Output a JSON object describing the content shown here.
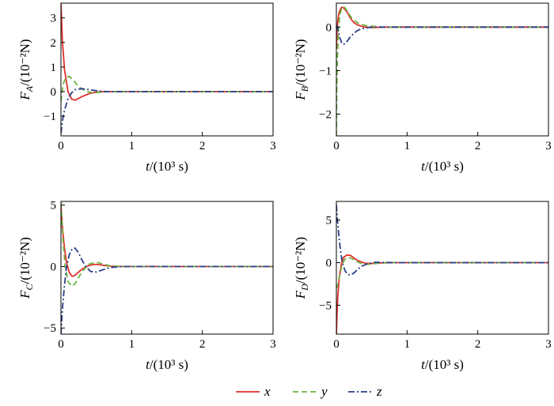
{
  "chart_data": [
    {
      "type": "line",
      "panel": "A",
      "ylabel": {
        "base": "F",
        "sub": "A",
        "unit": "/(10⁻²N)"
      },
      "xlabel": {
        "base": "t",
        "unit": "/(10³ s)"
      },
      "xlim": [
        0,
        3
      ],
      "ylim": [
        -1.8,
        3.6
      ],
      "xticks": [
        0,
        1,
        2,
        3
      ],
      "yticks": [
        -1,
        0,
        1,
        2,
        3
      ],
      "series": [
        {
          "name": "x",
          "x": [
            0,
            0.02,
            0.05,
            0.1,
            0.15,
            0.2,
            0.3,
            0.4,
            0.5,
            0.6,
            0.7,
            0.8,
            1.0,
            3.0
          ],
          "y": [
            3.6,
            2.1,
            0.9,
            0.0,
            -0.3,
            -0.35,
            -0.2,
            -0.08,
            -0.02,
            0.0,
            0.0,
            0.0,
            0.0,
            0.0
          ]
        },
        {
          "name": "y",
          "x": [
            0,
            0.03,
            0.07,
            0.12,
            0.18,
            0.25,
            0.35,
            0.45,
            0.55,
            0.65,
            0.8,
            1.0,
            3.0
          ],
          "y": [
            -0.4,
            0.3,
            0.58,
            0.62,
            0.45,
            0.2,
            0.02,
            -0.05,
            -0.03,
            0.0,
            0.0,
            0.0,
            0.0
          ]
        },
        {
          "name": "z",
          "x": [
            0,
            0.02,
            0.05,
            0.1,
            0.15,
            0.2,
            0.3,
            0.4,
            0.5,
            0.6,
            0.7,
            0.85,
            1.0,
            3.0
          ],
          "y": [
            -1.7,
            -1.2,
            -0.75,
            -0.3,
            -0.05,
            0.08,
            0.12,
            0.08,
            0.04,
            0.01,
            0.0,
            0.0,
            0.0,
            0.0
          ]
        }
      ]
    },
    {
      "type": "line",
      "panel": "B",
      "ylabel": {
        "base": "F",
        "sub": "B",
        "unit": "/(10⁻²N)"
      },
      "xlabel": {
        "base": "t",
        "unit": "/(10³ s)"
      },
      "xlim": [
        0,
        3
      ],
      "ylim": [
        -2.5,
        0.55
      ],
      "xticks": [
        0,
        1,
        2,
        3
      ],
      "yticks": [
        -2,
        -1,
        0
      ],
      "series": [
        {
          "name": "x",
          "x": [
            0,
            0.01,
            0.02,
            0.04,
            0.07,
            0.1,
            0.15,
            0.2,
            0.25,
            0.3,
            0.4,
            0.5,
            0.7,
            1.0,
            3.0
          ],
          "y": [
            -0.5,
            -0.1,
            0.15,
            0.35,
            0.45,
            0.45,
            0.35,
            0.2,
            0.1,
            0.05,
            0.0,
            -0.01,
            0.0,
            0.0,
            0.0
          ]
        },
        {
          "name": "y",
          "x": [
            0,
            0.005,
            0.015,
            0.03,
            0.05,
            0.08,
            0.12,
            0.17,
            0.22,
            0.3,
            0.4,
            0.5,
            0.65,
            0.8,
            1.0,
            3.0
          ],
          "y": [
            -2.5,
            -1.6,
            -0.7,
            -0.05,
            0.3,
            0.45,
            0.45,
            0.32,
            0.2,
            0.1,
            0.04,
            0.02,
            0.0,
            0.0,
            0.0,
            0.0
          ]
        },
        {
          "name": "z",
          "x": [
            0,
            0.02,
            0.05,
            0.08,
            0.1,
            0.12,
            0.15,
            0.2,
            0.25,
            0.3,
            0.35,
            0.45,
            0.55,
            0.7,
            1.0,
            3.0
          ],
          "y": [
            0.05,
            -0.05,
            -0.25,
            -0.38,
            -0.4,
            -0.38,
            -0.33,
            -0.22,
            -0.14,
            -0.08,
            -0.04,
            -0.01,
            0.0,
            0.0,
            0.0,
            0.0
          ]
        }
      ]
    },
    {
      "type": "line",
      "panel": "C",
      "ylabel": {
        "base": "F",
        "sub": "C",
        "unit": "/(10⁻²N)"
      },
      "xlabel": {
        "base": "t",
        "unit": "/(10³ s)"
      },
      "xlim": [
        0,
        3
      ],
      "ylim": [
        -5.5,
        5.3
      ],
      "xticks": [
        0,
        1,
        2,
        3
      ],
      "yticks": [
        -5,
        0,
        5
      ],
      "series": [
        {
          "name": "x",
          "x": [
            0,
            0.02,
            0.05,
            0.08,
            0.12,
            0.16,
            0.2,
            0.25,
            0.3,
            0.4,
            0.5,
            0.6,
            0.7,
            0.85,
            1.0,
            3.0
          ],
          "y": [
            5.0,
            3.2,
            1.5,
            0.3,
            -0.5,
            -0.8,
            -0.7,
            -0.45,
            -0.2,
            0.1,
            0.18,
            0.1,
            0.03,
            0.0,
            0.0,
            0.0
          ]
        },
        {
          "name": "y",
          "x": [
            0,
            0.03,
            0.06,
            0.1,
            0.15,
            0.2,
            0.25,
            0.3,
            0.4,
            0.5,
            0.6,
            0.7,
            0.85,
            1.0,
            3.0
          ],
          "y": [
            5.2,
            2.0,
            0.0,
            -1.2,
            -1.6,
            -1.4,
            -0.9,
            -0.4,
            0.2,
            0.35,
            0.2,
            0.05,
            0.0,
            0.0,
            0.0
          ]
        },
        {
          "name": "z",
          "x": [
            0,
            0.02,
            0.05,
            0.08,
            0.12,
            0.16,
            0.2,
            0.25,
            0.3,
            0.35,
            0.42,
            0.5,
            0.6,
            0.7,
            0.85,
            1.0,
            3.0
          ],
          "y": [
            -5.5,
            -3.5,
            -1.5,
            0.0,
            1.0,
            1.45,
            1.5,
            1.1,
            0.5,
            0.0,
            -0.4,
            -0.45,
            -0.25,
            -0.08,
            0.0,
            0.0,
            0.0
          ]
        }
      ]
    },
    {
      "type": "line",
      "panel": "D",
      "ylabel": {
        "base": "F",
        "sub": "D",
        "unit": "/(10⁻²N)"
      },
      "xlabel": {
        "base": "t",
        "unit": "/(10³ s)"
      },
      "xlim": [
        0,
        3
      ],
      "ylim": [
        -8.4,
        7.2
      ],
      "xticks": [
        0,
        1,
        2,
        3
      ],
      "yticks": [
        -5,
        0,
        5
      ],
      "series": [
        {
          "name": "x",
          "x": [
            0,
            0.01,
            0.02,
            0.04,
            0.07,
            0.1,
            0.15,
            0.2,
            0.25,
            0.3,
            0.4,
            0.5,
            0.6,
            0.8,
            1.0,
            3.0
          ],
          "y": [
            -8.4,
            -6.0,
            -4.0,
            -1.8,
            -0.2,
            0.6,
            0.9,
            0.85,
            0.55,
            0.25,
            -0.05,
            -0.1,
            -0.04,
            0.0,
            0.0,
            0.0
          ]
        },
        {
          "name": "y",
          "x": [
            0,
            0.02,
            0.05,
            0.08,
            0.12,
            0.16,
            0.2,
            0.25,
            0.3,
            0.35,
            0.45,
            0.55,
            0.7,
            0.85,
            1.0,
            3.0
          ],
          "y": [
            -3.0,
            -2.6,
            -1.4,
            -0.3,
            0.4,
            0.6,
            0.55,
            0.35,
            0.1,
            -0.1,
            -0.2,
            -0.1,
            0.0,
            0.0,
            0.0,
            0.0
          ]
        },
        {
          "name": "z",
          "x": [
            0,
            0.02,
            0.05,
            0.08,
            0.12,
            0.16,
            0.2,
            0.25,
            0.3,
            0.35,
            0.45,
            0.55,
            0.7,
            0.85,
            1.0,
            3.0
          ],
          "y": [
            6.8,
            4.5,
            2.0,
            0.2,
            -0.9,
            -1.4,
            -1.45,
            -1.2,
            -0.8,
            -0.45,
            -0.1,
            0.05,
            0.02,
            0.0,
            0.0,
            0.0
          ]
        }
      ]
    }
  ],
  "legend": {
    "placement": "bottom-center",
    "items": [
      {
        "label": "x",
        "color": "#e0312b",
        "dash": "solid"
      },
      {
        "label": "y",
        "color": "#6db33f",
        "dash": "dashed"
      },
      {
        "label": "z",
        "color": "#2c3e8a",
        "dash": "dash-dot"
      }
    ]
  }
}
